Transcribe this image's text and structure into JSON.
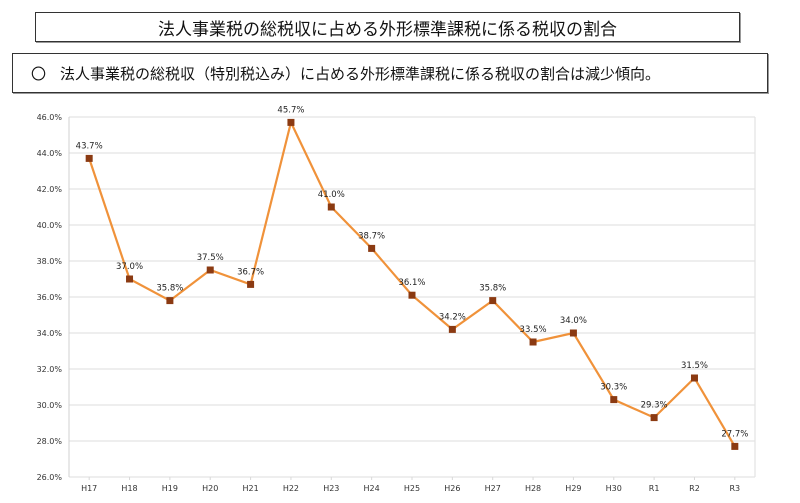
{
  "header": {
    "title": "法人事業税の総税収に占める外形標準課税に係る税収の割合",
    "bullet": "〇",
    "summary": "法人事業税の総税収（特別税込み）に占める外形標準課税に係る税収の割合は減少傾向。"
  },
  "chart_data": {
    "type": "line",
    "categories": [
      "H17",
      "H18",
      "H19",
      "H20",
      "H21",
      "H22",
      "H23",
      "H24",
      "H25",
      "H26",
      "H27",
      "H28",
      "H29",
      "H30",
      "R1",
      "R2",
      "R3"
    ],
    "values": [
      43.7,
      37.0,
      35.8,
      37.5,
      36.7,
      45.7,
      41.0,
      38.7,
      36.1,
      34.2,
      35.8,
      33.5,
      34.0,
      30.3,
      29.3,
      31.5,
      27.7
    ],
    "data_labels": [
      "43.7%",
      "37.0%",
      "35.8%",
      "37.5%",
      "36.7%",
      "45.7%",
      "41.0%",
      "38.7%",
      "36.1%",
      "34.2%",
      "35.8%",
      "33.5%",
      "34.0%",
      "30.3%",
      "29.3%",
      "31.5%",
      "27.7%"
    ],
    "ylim": [
      26.0,
      46.0
    ],
    "yticks": [
      "26.0%",
      "28.0%",
      "30.0%",
      "32.0%",
      "34.0%",
      "36.0%",
      "38.0%",
      "40.0%",
      "42.0%",
      "44.0%",
      "46.0%"
    ],
    "grid": true,
    "legend": "none",
    "colors": {
      "line": "#F0923A",
      "marker": "#8B3A12",
      "grid": "#E3E3E3"
    }
  }
}
